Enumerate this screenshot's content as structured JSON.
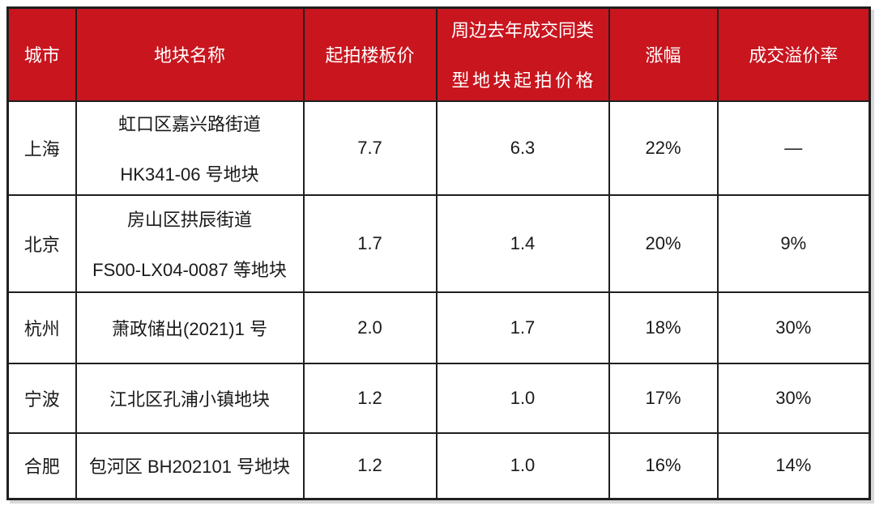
{
  "chart_data": {
    "type": "table",
    "columns": [
      "城市",
      "地块名称",
      "起拍楼板价",
      "周边去年成交同类型地块起拍价格",
      "涨幅",
      "成交溢价率"
    ],
    "rows": [
      [
        "上海",
        "虹口区嘉兴路街道 HK341-06 号地块",
        "7.7",
        "6.3",
        "22%",
        "—"
      ],
      [
        "北京",
        "房山区拱辰街道 FS00-LX04-0087 等地块",
        "1.7",
        "1.4",
        "20%",
        "9%"
      ],
      [
        "杭州",
        "萧政储出(2021)1 号",
        "2.0",
        "1.7",
        "18%",
        "30%"
      ],
      [
        "宁波",
        "江北区孔浦小镇地块",
        "1.2",
        "1.0",
        "17%",
        "30%"
      ],
      [
        "合肥",
        "包河区 BH202101 号地块",
        "1.2",
        "1.0",
        "16%",
        "14%"
      ]
    ]
  },
  "display": {
    "headers": {
      "city": "城市",
      "plot_name": "地块名称",
      "start_price": "起拍楼板价",
      "nearby_line1": "周边去年成交同类",
      "nearby_line2": "型地块起拍价格",
      "increase": "涨幅",
      "premium": "成交溢价率"
    },
    "rows": [
      {
        "city": "上海",
        "name_line1": "虹口区嘉兴路街道",
        "name_line2": "HK341-06 号地块",
        "start_price": "7.7",
        "nearby_price": "6.3",
        "increase": "22%",
        "premium": "—"
      },
      {
        "city": "北京",
        "name_line1": "房山区拱辰街道",
        "name_line2": "FS00-LX04-0087 等地块",
        "start_price": "1.7",
        "nearby_price": "1.4",
        "increase": "20%",
        "premium": "9%"
      },
      {
        "city": "杭州",
        "name_line1": "萧政储出(2021)1 号",
        "start_price": "2.0",
        "nearby_price": "1.7",
        "increase": "18%",
        "premium": "30%"
      },
      {
        "city": "宁波",
        "name_line1": "江北区孔浦小镇地块",
        "start_price": "1.2",
        "nearby_price": "1.0",
        "increase": "17%",
        "premium": "30%"
      },
      {
        "city": "合肥",
        "name_line1": "包河区 BH202101 号地块",
        "start_price": "1.2",
        "nearby_price": "1.0",
        "increase": "16%",
        "premium": "14%"
      }
    ]
  },
  "colors": {
    "header_bg": "#C8151E",
    "header_text": "#FFFFFF",
    "body_text": "#1A1A1A",
    "border": "#1F1F1F",
    "shadow": "#D8D8D8",
    "background": "#FFFFFF"
  }
}
